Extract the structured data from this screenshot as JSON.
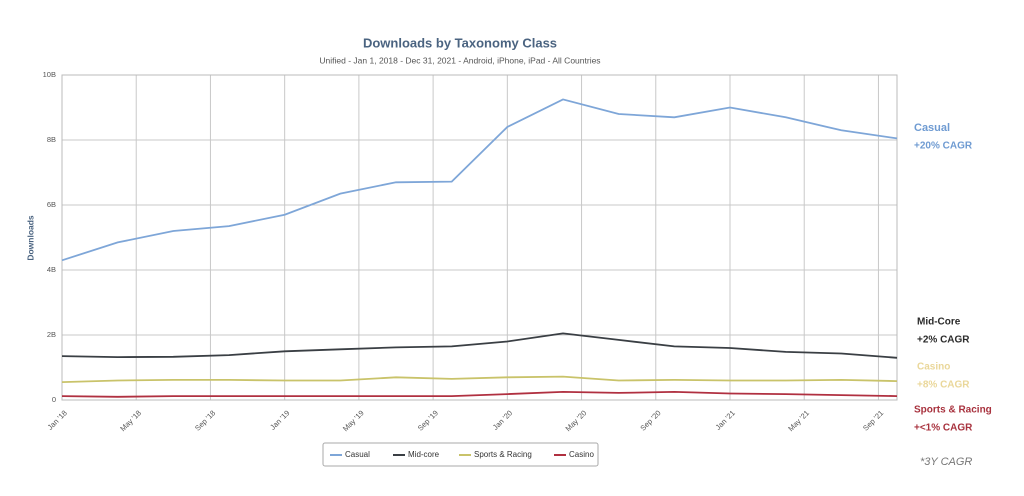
{
  "chart_data": {
    "type": "line",
    "title": "Downloads by Taxonomy Class",
    "subtitle": "Unified - Jan 1, 2018 - Dec 31, 2021 - Android, iPhone, iPad - All Countries",
    "y_label": "Downloads",
    "x": [
      "2018-01",
      "2018-04",
      "2018-07",
      "2018-10",
      "2019-01",
      "2019-04",
      "2019-07",
      "2019-10",
      "2020-01",
      "2020-04",
      "2020-07",
      "2020-10",
      "2021-01",
      "2021-04",
      "2021-07",
      "2021-10"
    ],
    "xlim": [
      "2018-01",
      "2021-10"
    ],
    "xticks": [
      {
        "value": "2018-01",
        "label": "Jan '18"
      },
      {
        "value": "2018-05",
        "label": "May '18"
      },
      {
        "value": "2018-09",
        "label": "Sep '18"
      },
      {
        "value": "2019-01",
        "label": "Jan '19"
      },
      {
        "value": "2019-05",
        "label": "May '19"
      },
      {
        "value": "2019-09",
        "label": "Sep '19"
      },
      {
        "value": "2020-01",
        "label": "Jan '20"
      },
      {
        "value": "2020-05",
        "label": "May '20"
      },
      {
        "value": "2020-09",
        "label": "Sep '20"
      },
      {
        "value": "2021-01",
        "label": "Jan '21"
      },
      {
        "value": "2021-05",
        "label": "May '21"
      },
      {
        "value": "2021-09",
        "label": "Sep '21"
      }
    ],
    "ylim": [
      0,
      10
    ],
    "yticks": [
      0,
      {
        "value": 2,
        "label": "2B"
      },
      {
        "value": 4,
        "label": "4B"
      },
      {
        "value": 6,
        "label": "6B"
      },
      {
        "value": 8,
        "label": "8B"
      },
      {
        "value": 10,
        "label": "10B"
      }
    ],
    "grid": true,
    "legend": "bottom",
    "series": [
      {
        "name": "Casual",
        "color": "#7ea6d8",
        "values": [
          4.3,
          4.85,
          5.2,
          5.35,
          5.7,
          6.35,
          6.7,
          6.72,
          8.4,
          9.25,
          8.8,
          8.7,
          9.0,
          8.7,
          8.3,
          8.05
        ]
      },
      {
        "name": "Mid-core",
        "color": "#3a3f44",
        "values": [
          1.35,
          1.32,
          1.33,
          1.38,
          1.5,
          1.56,
          1.62,
          1.65,
          1.8,
          2.05,
          1.85,
          1.65,
          1.6,
          1.48,
          1.43,
          1.3
        ]
      },
      {
        "name": "Sports & Racing",
        "color": "#c9c36a",
        "values": [
          0.55,
          0.6,
          0.62,
          0.62,
          0.6,
          0.6,
          0.7,
          0.65,
          0.7,
          0.72,
          0.6,
          0.62,
          0.6,
          0.6,
          0.62,
          0.58
        ]
      },
      {
        "name": "Casino",
        "color": "#b03040",
        "values": [
          0.12,
          0.1,
          0.12,
          0.12,
          0.12,
          0.12,
          0.12,
          0.12,
          0.18,
          0.25,
          0.22,
          0.25,
          0.2,
          0.18,
          0.15,
          0.12
        ]
      }
    ],
    "annotations": [
      {
        "text": "Casual",
        "color": "#6f9bd2"
      },
      {
        "text": "+20% CAGR",
        "color": "#6f9bd2"
      },
      {
        "text": "Mid-Core",
        "color": "#2b2b2b"
      },
      {
        "text": "+2% CAGR",
        "color": "#2b2b2b"
      },
      {
        "text": "Casino",
        "color": "#ead79a"
      },
      {
        "text": "+8% CAGR",
        "color": "#ead79a"
      },
      {
        "text": "Sports & Racing",
        "color": "#a8323e"
      },
      {
        "text": "+<1% CAGR",
        "color": "#a8323e"
      },
      {
        "text": "*3Y CAGR",
        "color": "#777777"
      }
    ]
  }
}
